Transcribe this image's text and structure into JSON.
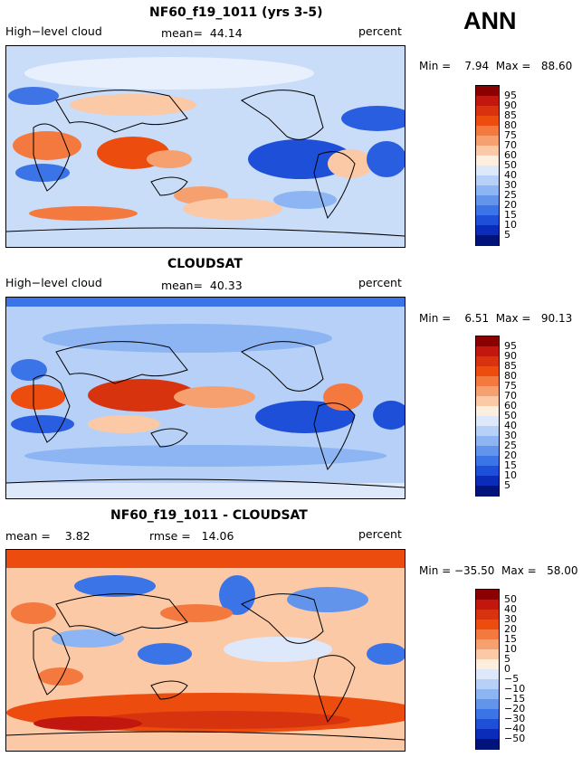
{
  "season": "ANN",
  "panels": [
    {
      "title": "NF60_f19_1011 (yrs 3-5)",
      "left_label": "High−level cloud",
      "stat_label": "mean=  44.14",
      "units": "percent",
      "min_label": "Min =    7.94",
      "max_label": "Max =   88.60",
      "ticks": [
        "95",
        "90",
        "85",
        "80",
        "75",
        "70",
        "60",
        "50",
        "40",
        "30",
        "25",
        "20",
        "15",
        "10",
        "5"
      ],
      "colors": [
        "#8b0000",
        "#c1170f",
        "#d8330f",
        "#ec4d0e",
        "#f4793f",
        "#f7a06f",
        "#fbc9a6",
        "#fdeedd",
        "#dde9fb",
        "#b7d0f7",
        "#8db5f3",
        "#6294ec",
        "#3b74e6",
        "#1d4fd8",
        "#0a2cb8",
        "#00137a"
      ]
    },
    {
      "title": "CLOUDSAT",
      "left_label": "High−level cloud",
      "stat_label": "mean=  40.33",
      "units": "percent",
      "min_label": "Min =    6.51",
      "max_label": "Max =   90.13",
      "ticks": [
        "95",
        "90",
        "85",
        "80",
        "75",
        "70",
        "60",
        "50",
        "40",
        "30",
        "25",
        "20",
        "15",
        "10",
        "5"
      ],
      "colors": [
        "#8b0000",
        "#c1170f",
        "#d8330f",
        "#ec4d0e",
        "#f4793f",
        "#f7a06f",
        "#fbc9a6",
        "#fdeedd",
        "#dde9fb",
        "#b7d0f7",
        "#8db5f3",
        "#6294ec",
        "#3b74e6",
        "#1d4fd8",
        "#0a2cb8",
        "#00137a"
      ]
    },
    {
      "title": "NF60_f19_1011 - CLOUDSAT",
      "left_label": "mean =    3.82",
      "stat_label": "rmse =   14.06",
      "units": "percent",
      "min_label": "Min = −35.50",
      "max_label": "Max =   58.00",
      "ticks": [
        "50",
        "40",
        "30",
        "20",
        "15",
        "10",
        "5",
        "0",
        "−5",
        "−10",
        "−15",
        "−20",
        "−30",
        "−40",
        "−50"
      ],
      "colors": [
        "#8b0000",
        "#c1170f",
        "#d8330f",
        "#ec4d0e",
        "#f4793f",
        "#f7a06f",
        "#fbc9a6",
        "#fdeedd",
        "#dde9fb",
        "#b7d0f7",
        "#8db5f3",
        "#6294ec",
        "#3b74e6",
        "#1d4fd8",
        "#0a2cb8",
        "#00137a"
      ]
    }
  ],
  "chart_data": [
    {
      "type": "heatmap",
      "title": "NF60_f19_1011 (yrs 3-5)",
      "variable": "High-level cloud",
      "units": "percent",
      "mean": 44.14,
      "min": 7.94,
      "max": 88.6,
      "levels": [
        5,
        10,
        15,
        20,
        25,
        30,
        40,
        50,
        60,
        70,
        75,
        80,
        85,
        90,
        95
      ]
    },
    {
      "type": "heatmap",
      "title": "CLOUDSAT",
      "variable": "High-level cloud",
      "units": "percent",
      "mean": 40.33,
      "min": 6.51,
      "max": 90.13,
      "levels": [
        5,
        10,
        15,
        20,
        25,
        30,
        40,
        50,
        60,
        70,
        75,
        80,
        85,
        90,
        95
      ]
    },
    {
      "type": "heatmap",
      "title": "NF60_f19_1011 - CLOUDSAT",
      "units": "percent",
      "mean": 3.82,
      "rmse": 14.06,
      "min": -35.5,
      "max": 58.0,
      "levels": [
        -50,
        -40,
        -30,
        -20,
        -15,
        -10,
        -5,
        0,
        5,
        10,
        15,
        20,
        30,
        40,
        50
      ]
    }
  ]
}
